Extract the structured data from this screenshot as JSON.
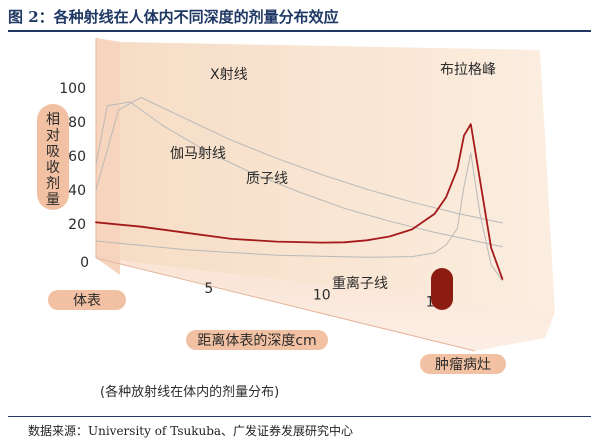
{
  "title": "图 2：各种射线在人体内不同深度的剂量分布效应",
  "source": "数据来源：University of Tsukuba、广发证券发展研究中心",
  "caption": "(各种放射线在体内的剂量分布)",
  "colors": {
    "wall": "#f8e3cf",
    "floor": "#fbe9dc",
    "pill": "#f2c0a2",
    "bragg": "#a41a1a",
    "tumor": "#8c1c10",
    "ref_curves": "#b9b9b9"
  },
  "chart_data": {
    "type": "line",
    "ylabel": "相对吸收剂量",
    "xlabel": "距离体表的深度cm",
    "x_origin_label": "体表",
    "y_ticks": [
      0,
      20,
      40,
      60,
      80,
      100
    ],
    "x_ticks": [
      5,
      10,
      15
    ],
    "xlim": [
      0,
      19
    ],
    "ylim": [
      0,
      100
    ],
    "annotations": {
      "xray": "X射线",
      "gamma": "伽马射线",
      "proton": "质子线",
      "heavy_ion": "重离子线",
      "bragg_peak": "布拉格峰",
      "tumor": "肿瘤病灶"
    },
    "series": [
      {
        "name": "",
        "color": "#a41a1a",
        "x": [
          0,
          2,
          4,
          6,
          8,
          10,
          11,
          12,
          13,
          14,
          15,
          15.5,
          16,
          16.3,
          16.6,
          17,
          17.5,
          18
        ],
        "y": [
          21,
          20,
          18,
          16,
          16,
          17,
          18,
          20,
          23,
          28,
          38,
          48,
          65,
          85,
          92,
          60,
          20,
          2
        ]
      },
      {
        "name": "",
        "color": "#b9b9b9",
        "x": [
          0,
          1,
          2,
          4,
          6,
          8,
          10,
          12,
          14,
          16,
          18
        ],
        "y": [
          40,
          88,
          96,
          85,
          74,
          65,
          57,
          50,
          44,
          39,
          35
        ]
      },
      {
        "name": "",
        "color": "#b9b9b9",
        "x": [
          0,
          0.5,
          1.5,
          3,
          5,
          7,
          9,
          11,
          13,
          15,
          17,
          18
        ],
        "y": [
          55,
          90,
          93,
          80,
          66,
          55,
          46,
          38,
          32,
          27,
          23,
          21
        ]
      },
      {
        "name": "",
        "color": "#b9b9b9",
        "x": [
          0,
          2,
          4,
          6,
          8,
          10,
          12,
          14,
          15,
          15.5,
          16,
          16.3,
          16.6,
          17,
          17.5,
          18
        ],
        "y": [
          10,
          9,
          8,
          8,
          8,
          9,
          10,
          12,
          15,
          20,
          30,
          55,
          75,
          40,
          10,
          1
        ]
      }
    ]
  }
}
